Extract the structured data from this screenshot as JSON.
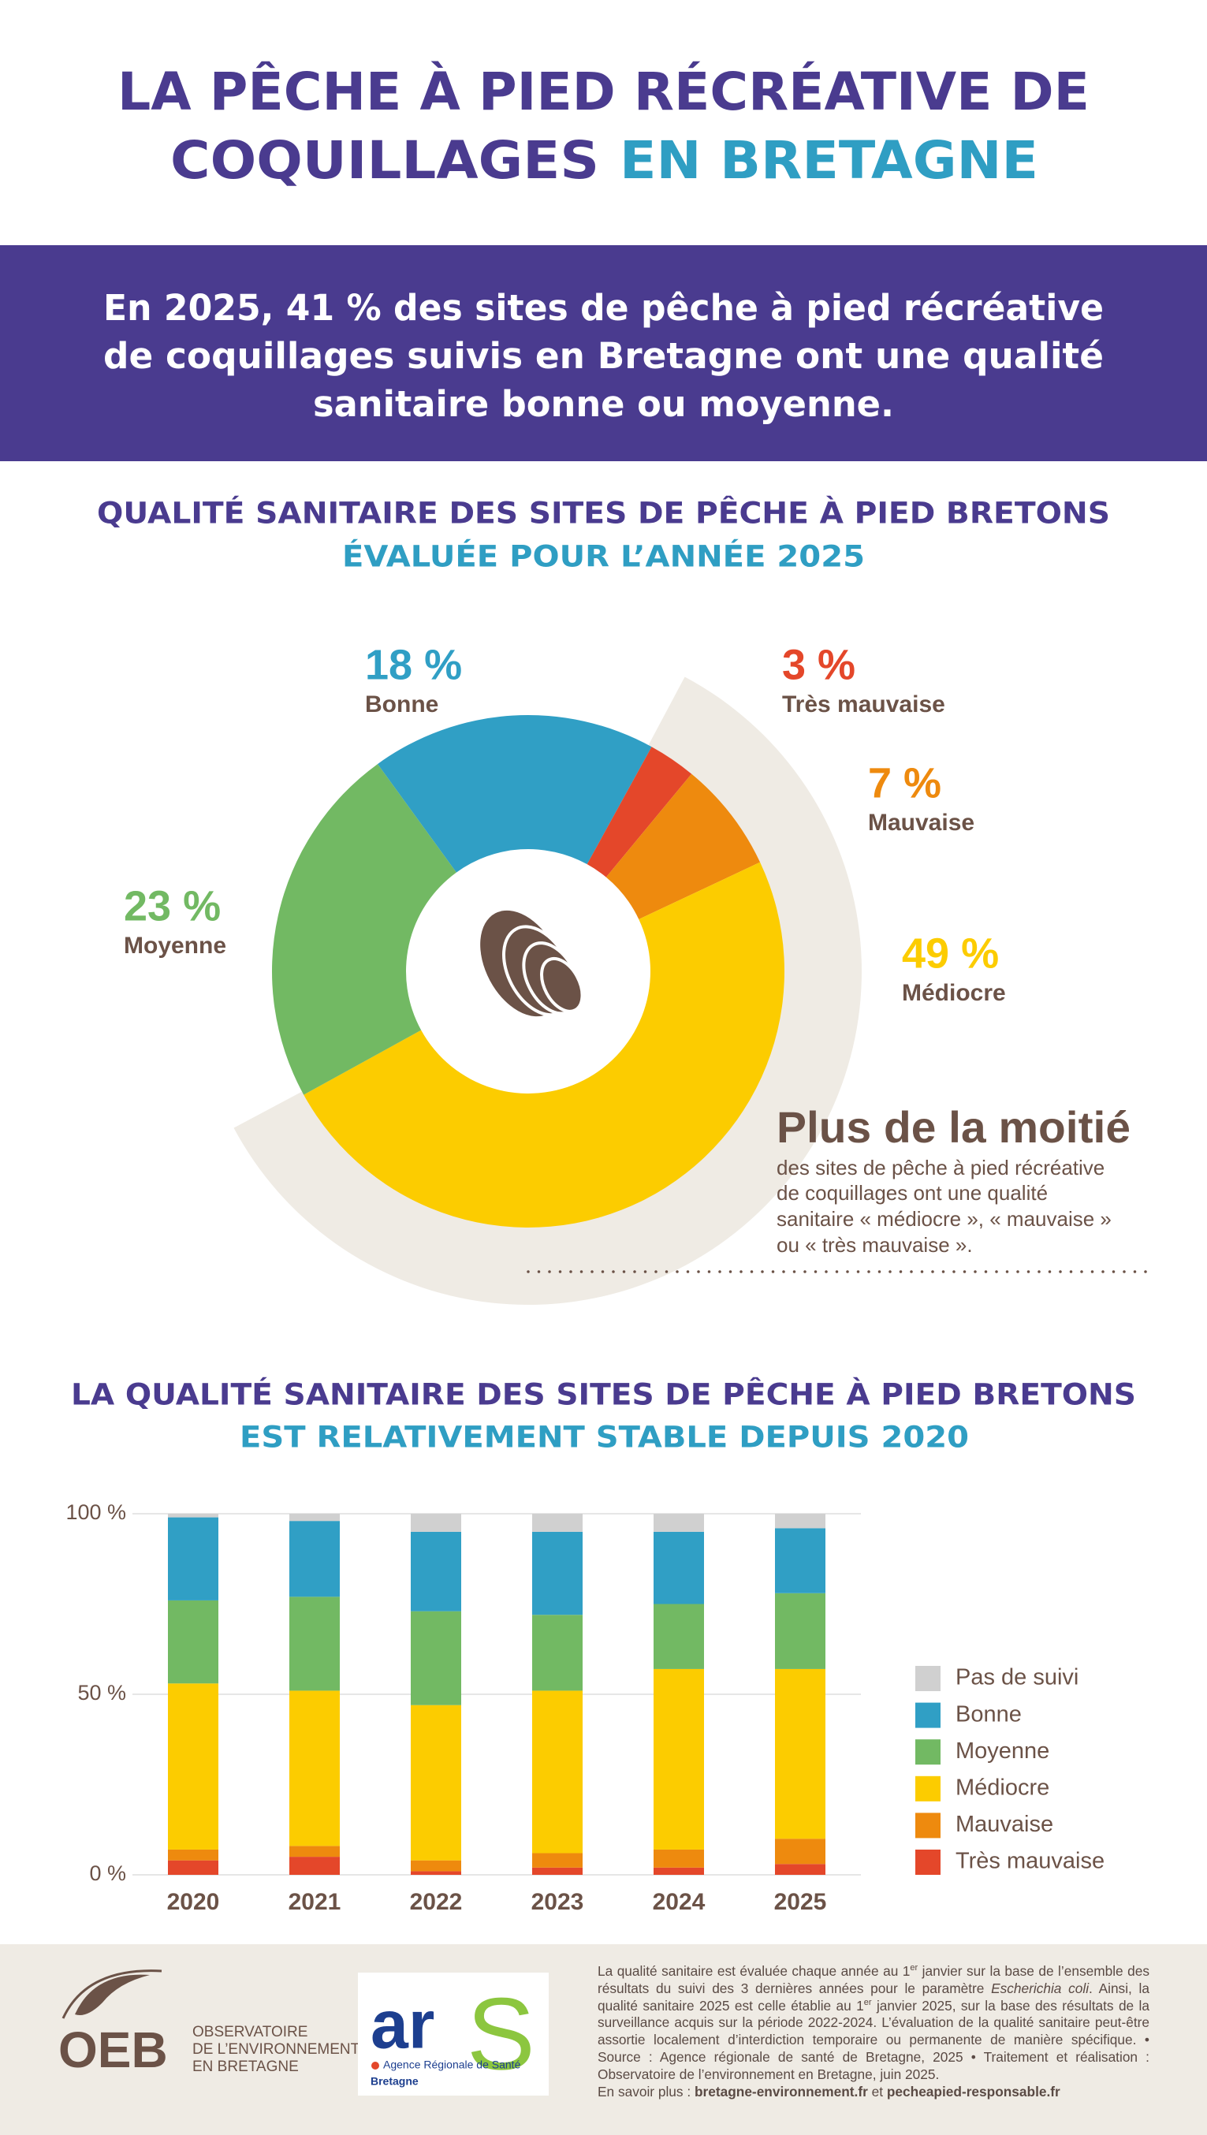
{
  "header": {
    "title_line1": "LA PÊCHE À PIED RÉCRÉATIVE DE",
    "title_line2a": "COQUILLAGES",
    "title_line2b": "EN BRETAGNE"
  },
  "banner": {
    "lines": [
      "En 2025, 41 % des sites de pêche à pied récréative",
      "de coquillages suivis en Bretagne ont une qualité",
      "sanitaire bonne ou moyenne."
    ]
  },
  "chart_data": [
    {
      "type": "pie",
      "title": "QUALITÉ SANITAIRE DES SITES DE PÊCHE À PIED BRETONS",
      "subtitle": "ÉVALUÉE POUR L’ANNÉE 2025",
      "categories": [
        "Bonne",
        "Très mauvaise",
        "Mauvaise",
        "Médiocre",
        "Moyenne"
      ],
      "values": [
        18,
        3,
        7,
        49,
        23
      ],
      "value_labels": [
        "18 %",
        "3 %",
        "7 %",
        "49 %",
        "23 %"
      ],
      "colors": [
        "#309fc5",
        "#e4472a",
        "#ee8a0e",
        "#fccc00",
        "#72b963"
      ]
    },
    {
      "type": "bar",
      "title": "LA QUALITÉ SANITAIRE DES SITES DE PÊCHE À PIED BRETONS",
      "subtitle": "EST RELATIVEMENT STABLE DEPUIS 2020",
      "categories": [
        "2020",
        "2021",
        "2022",
        "2023",
        "2024",
        "2025"
      ],
      "series": [
        {
          "name": "Pas de suivi",
          "color": "#d0d0d0",
          "values": [
            1,
            2,
            5,
            5,
            5,
            4
          ]
        },
        {
          "name": "Bonne",
          "color": "#309fc5",
          "values": [
            23,
            21,
            22,
            23,
            20,
            18
          ]
        },
        {
          "name": "Moyenne",
          "color": "#72b963",
          "values": [
            23,
            26,
            26,
            21,
            18,
            21
          ]
        },
        {
          "name": "Médiocre",
          "color": "#fccc00",
          "values": [
            46,
            43,
            43,
            45,
            50,
            47
          ]
        },
        {
          "name": "Mauvaise",
          "color": "#ee8a0e",
          "values": [
            3,
            3,
            3,
            4,
            5,
            7
          ]
        },
        {
          "name": "Très mauvaise",
          "color": "#e4472a",
          "values": [
            4,
            5,
            1,
            2,
            2,
            3
          ]
        }
      ],
      "ylim": [
        0,
        100
      ],
      "yticks": [
        {
          "value": 0,
          "label": "0 %"
        },
        {
          "value": 50,
          "label": "50 %"
        },
        {
          "value": 100,
          "label": "100 %"
        }
      ],
      "grid": true,
      "legend": "right"
    }
  ],
  "callout": {
    "heading": "Plus de la moitié",
    "lines": [
      "des sites de pêche à pied récréative",
      "de coquillages ont une qualité",
      "sanitaire « médiocre », « mauvaise »",
      "ou « très mauvaise »."
    ]
  },
  "logos": {
    "oeb": "OEB",
    "oeb_lines": [
      "OBSERVATOIRE",
      "DE L’ENVIRONNEMENT",
      "EN BRETAGNE"
    ],
    "ars_a": "ar",
    "ars_s": "S",
    "ars_name": "Agence Régionale de Santé",
    "ars_region": "Bretagne"
  },
  "footer": {
    "note": [
      "La qualité sanitaire est évaluée chaque année au 1",
      "er",
      " janvier sur la base de l’ensemble des résultats du suivi des 3 dernières années pour le paramètre ",
      "Escherichia coli",
      ". Ainsi, la qualité sanitaire 2025 est celle établie au 1",
      "er",
      " janvier 2025, sur la base des résultats de la surveillance acquis sur la période 2022-2024. L’évaluation de la qualité sanitaire peut-être assortie localement d’interdiction temporaire ou permanente de manière spécifique. • Source : Agence régionale de santé de Bretagne, 2025 • Traitement et réalisation : Observatoire de l’environnement en Bretagne, juin 2025."
    ],
    "more": [
      "En savoir plus : ",
      "bretagne-environnement.fr",
      " et ",
      "pecheapied-responsable.fr"
    ]
  }
}
